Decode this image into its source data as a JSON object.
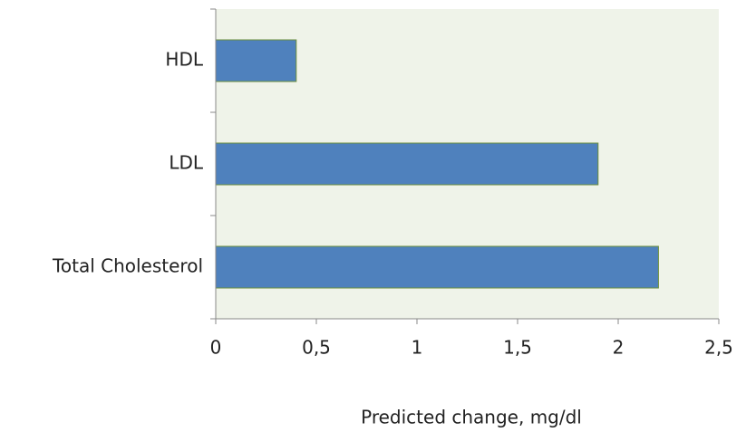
{
  "chart_data": {
    "type": "hbar",
    "x_label": "Predicted change, mg/dl",
    "categories": [
      "Total Cholesterol",
      "LDL",
      "HDL"
    ],
    "values": [
      2.2,
      1.9,
      0.4
    ],
    "color": "#4f81bd",
    "xlim": [
      0,
      2.5
    ],
    "xticks": [
      0,
      {
        "value": 0.5,
        "label": "0,5"
      },
      1,
      {
        "value": 1.5,
        "label": "1,5"
      },
      2,
      {
        "value": 2.5,
        "label": "2,5"
      }
    ]
  }
}
